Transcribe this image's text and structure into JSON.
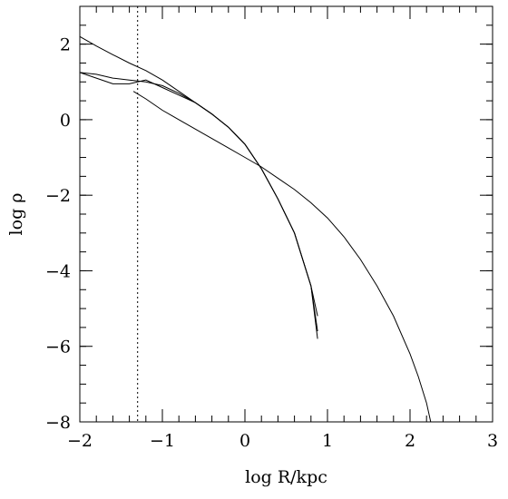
{
  "chart_data": {
    "type": "line",
    "xlabel": "log R/kpc",
    "ylabel": "log ρ",
    "xlim": [
      -2,
      3
    ],
    "ylim": [
      -8,
      3
    ],
    "x_ticks": [
      -2,
      -1,
      0,
      1,
      2,
      3
    ],
    "y_ticks": [
      -8,
      -6,
      -4,
      -2,
      0,
      2
    ],
    "x_tick_labels": [
      "−2",
      "−1",
      "0",
      "1",
      "2",
      "3"
    ],
    "y_tick_labels": [
      "−8",
      "−6",
      "−4",
      "−2",
      "0",
      "2"
    ],
    "minor_x_step": 0.2,
    "minor_y_step": 0.5,
    "vertical_reference_line": {
      "x": -1.3,
      "style": "dotted"
    },
    "series": [
      {
        "x": [
          -2.0,
          -1.8,
          -1.6,
          -1.4,
          -1.2,
          -1.0,
          -0.8,
          -0.6,
          -0.4,
          -0.2,
          0.0,
          0.2,
          0.4,
          0.6,
          0.8,
          0.88
        ],
        "y": [
          2.2,
          1.95,
          1.72,
          1.5,
          1.3,
          1.05,
          0.75,
          0.45,
          0.15,
          -0.2,
          -0.65,
          -1.3,
          -2.1,
          -3.0,
          -4.4,
          -5.8
        ]
      },
      {
        "x": [
          -2.0,
          -1.8,
          -1.6,
          -1.4,
          -1.2,
          -1.0,
          -0.8,
          -0.6,
          -0.4,
          -0.2,
          0.0,
          0.2,
          0.4,
          0.6,
          0.8,
          0.88
        ],
        "y": [
          1.25,
          1.2,
          1.1,
          1.05,
          1.0,
          0.9,
          0.7,
          0.45,
          0.15,
          -0.2,
          -0.65,
          -1.3,
          -2.1,
          -3.0,
          -4.4,
          -5.2
        ]
      },
      {
        "x": [
          -2.0,
          -1.8,
          -1.6,
          -1.4,
          -1.2,
          -1.0,
          -0.8,
          -0.6,
          -0.4,
          -0.2,
          0.0,
          0.2,
          0.4,
          0.6,
          0.8,
          0.88
        ],
        "y": [
          1.25,
          1.1,
          0.95,
          0.95,
          1.05,
          0.85,
          0.65,
          0.45,
          0.15,
          -0.2,
          -0.65,
          -1.3,
          -2.1,
          -3.0,
          -4.4,
          -5.6
        ]
      },
      {
        "x": [
          -1.35,
          -1.2,
          -1.0,
          -0.8,
          -0.6,
          -0.4,
          -0.2,
          0.0,
          0.2,
          0.4,
          0.6,
          0.8,
          1.0,
          1.2,
          1.4,
          1.6,
          1.8,
          2.0,
          2.1,
          2.2,
          2.25
        ],
        "y": [
          0.75,
          0.55,
          0.25,
          0.0,
          -0.25,
          -0.5,
          -0.75,
          -1.0,
          -1.25,
          -1.55,
          -1.85,
          -2.2,
          -2.6,
          -3.1,
          -3.7,
          -4.4,
          -5.2,
          -6.2,
          -6.8,
          -7.5,
          -8.0
        ]
      }
    ]
  }
}
